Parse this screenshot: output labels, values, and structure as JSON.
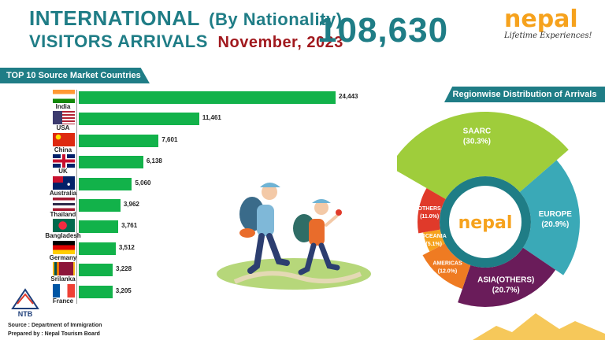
{
  "header": {
    "title_line1": "INTERNATIONAL",
    "title_paren": "(By Nationality)",
    "title_line2": "VISITORS ARRIVALS",
    "month": "November, 2023",
    "total": "108,630"
  },
  "brand": {
    "logo_text": "nepal",
    "tagline": "Lifetime Experiences!",
    "center_logo_text": "nepal",
    "board_abbr": "NTB"
  },
  "left_panel": {
    "title": "TOP 10 Source Market Countries"
  },
  "right_panel": {
    "title": "Regionwise Distribution of Arrivals"
  },
  "footer": {
    "source": "Source : Department of Immigration",
    "prepared": "Prepared by : Nepal Tourism Board"
  },
  "colors": {
    "teal": "#1f7d86",
    "bar_green": "#12b24a",
    "saarc": "#9fcd3b",
    "europe": "#3aa9b7",
    "asia": "#6a1c5a",
    "americas": "#ef7b22",
    "oceania": "#f6a21d",
    "others": "#e03a2a",
    "month_red": "#a1191e"
  },
  "chart_data": [
    {
      "type": "bar",
      "orientation": "horizontal",
      "title": "TOP 10 Source Market Countries",
      "categories": [
        "India",
        "USA",
        "China",
        "UK",
        "Australia",
        "Thailand",
        "Bangladesh",
        "Germany",
        "Srilanka",
        "France"
      ],
      "values": [
        24443,
        11461,
        7601,
        6138,
        5060,
        3962,
        3761,
        3512,
        3228,
        3205
      ],
      "value_labels": [
        "24,443",
        "11,461",
        "7,601",
        "6,138",
        "5,060",
        "3,962",
        "3,761",
        "3,512",
        "3,228",
        "3,205"
      ],
      "xlim": [
        0,
        24443
      ]
    },
    {
      "type": "pie",
      "title": "Regionwise Distribution of Arrivals",
      "categories": [
        "SAARC",
        "EUROPE",
        "ASIA(OTHERS)",
        "AMERICAS",
        "OCEANIA",
        "OTHERS"
      ],
      "values": [
        30.3,
        20.9,
        20.7,
        12.0,
        5.1,
        11.0
      ],
      "value_labels": [
        "(30.3%)",
        "(20.9%)",
        "(20.7%)",
        "(12.0%)",
        "(5.1%)",
        "(11.0%)"
      ]
    }
  ]
}
